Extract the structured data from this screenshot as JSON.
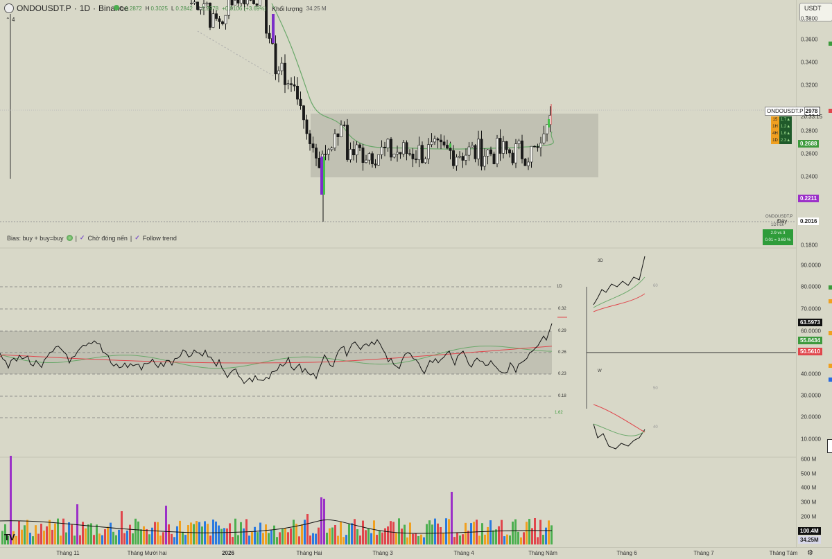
{
  "header": {
    "symbol": "ONDOUSDT.P",
    "interval": "1D",
    "exchange": "Binance",
    "title_sep": "·",
    "o_label": "O",
    "o_value": "0.2872",
    "h_label": "H",
    "h_value": "0.3025",
    "l_label": "L",
    "l_value": "0.2842",
    "c_label": "C",
    "c_value": "0.2978",
    "change": "+0.0106 (+3.69%)",
    "volume_label": "Khối lượng",
    "volume_value": "34.25 M",
    "collapse_count": "4"
  },
  "currency": "USDT",
  "indicator_legend": {
    "bias": "Bias: buy + buy=buy",
    "wait_close": "Chờ đóng nến",
    "follow_trend": "Follow trend",
    "divider": "|"
  },
  "price_axis": {
    "ticks": [
      "0.3800",
      "0.3600",
      "0.3400",
      "0.3200",
      "0.3000",
      "0.2800",
      "0.2600",
      "0.2400",
      "0.2200",
      "0.2000",
      "0.1800"
    ],
    "current_symbol": "ONDOUSDT.P",
    "current_price": "0.2978",
    "countdown": "20:33:15",
    "ma_value": "0.2688",
    "low_value": "0.2211",
    "bottom_label": "Đáy",
    "bottom_value": "0.2016",
    "bottom_symbol": "ONDOUSDT.P",
    "bottom_tick": "1DTick",
    "bottom_ratio": "2.9 vs 3",
    "bottom_info": "0.01 ≈ 3.69 %",
    "colors": {
      "current": "#ffffff",
      "ma": "#3d9a3d",
      "low": "#9b30c8",
      "up": "#4caf50",
      "down": "#e0464c"
    }
  },
  "mtf_table": {
    "rows": [
      {
        "tf": "15",
        "val": "1.7▲"
      },
      {
        "tf": "1H",
        "val": "1.2▲"
      },
      {
        "tf": "4H",
        "val": "1.6▲"
      },
      {
        "tf": "1D",
        "val": "2.3▲"
      }
    ]
  },
  "osc_axis": {
    "ticks": [
      "90.0000",
      "80.0000",
      "70.0000",
      "60.0000",
      "40.0000",
      "30.0000",
      "20.0000",
      "10.0000"
    ],
    "value_black": "63.5973",
    "value_green": "55.8434",
    "value_red": "50.5610"
  },
  "osc_labels": {
    "levels": [
      "1D",
      "0.32",
      "0.29",
      "0.26",
      "0.23",
      "0.18",
      "1.62"
    ],
    "panel_3d": "3D",
    "panel_w": "W",
    "mini_ticks": [
      "60",
      "50",
      "40"
    ]
  },
  "volume_axis": {
    "ticks": [
      "600 M",
      "500 M",
      "400 M",
      "300 M",
      "200 M",
      "100 M"
    ],
    "ma_value": "100.4M",
    "last_value": "34.25M"
  },
  "time_axis": {
    "labels": [
      "Tháng 11",
      "Tháng Mười hai",
      "2026",
      "Tháng Hai",
      "Tháng 3",
      "Tháng 4",
      "Tháng Năm",
      "Tháng 6",
      "Tháng 7",
      "Tháng Tám"
    ]
  },
  "logo": "TV",
  "chart_data": {
    "type": "candlestick",
    "price_range": [
      0.18,
      0.39
    ],
    "box_range": [
      0.24,
      0.297
    ],
    "bars": 116
  }
}
